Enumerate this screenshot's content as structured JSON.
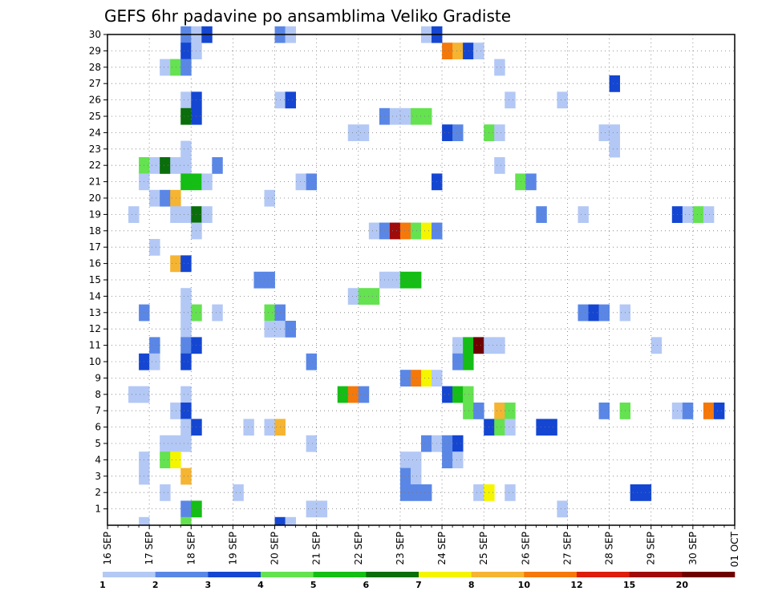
{
  "chart_data": {
    "type": "heatmap",
    "title": "GEFS 6hr padavine po ansamblima Veliko Gradiste",
    "xlabel": "",
    "ylabel": "",
    "x_unit": "6-hour step",
    "x_range": [
      0,
      60
    ],
    "ylim": [
      0,
      30
    ],
    "y_ticks": [
      1,
      2,
      3,
      4,
      5,
      6,
      7,
      8,
      9,
      10,
      11,
      12,
      13,
      14,
      15,
      16,
      17,
      18,
      19,
      20,
      21,
      22,
      23,
      24,
      25,
      26,
      27,
      28,
      29,
      30
    ],
    "x_tick_labels": [
      "16 SEP",
      "17 SEP",
      "18 SEP",
      "19 SEP",
      "20 SEP",
      "21 SEP",
      "22 SEP",
      "23 SEP",
      "24 SEP",
      "25 SEP",
      "26 SEP",
      "27 SEP",
      "28 SEP",
      "29 SEP",
      "30 SEP",
      "01 OCT"
    ],
    "grid": true,
    "legend": {
      "placement": "bottom",
      "labels": [
        "1",
        "2",
        "3",
        "4",
        "5",
        "6",
        "7",
        "8",
        "10",
        "12",
        "15",
        "20"
      ],
      "colors": [
        "#b3c8f5",
        "#5a87e6",
        "#1446d2",
        "#64e250",
        "#14be14",
        "#0a6e0a",
        "#f5f500",
        "#f5b432",
        "#f5780a",
        "#dc1e0a",
        "#a00a0a",
        "#6e0000"
      ]
    },
    "cells_format": "[member, step_index, color_class]",
    "cells": [
      [
        30,
        7,
        2
      ],
      [
        30,
        8,
        1
      ],
      [
        30,
        9,
        3
      ],
      [
        30,
        16,
        2
      ],
      [
        30,
        17,
        1
      ],
      [
        30,
        30,
        1
      ],
      [
        30,
        31,
        3
      ],
      [
        29,
        7,
        3
      ],
      [
        29,
        8,
        1
      ],
      [
        29,
        32,
        9
      ],
      [
        29,
        33,
        8
      ],
      [
        29,
        34,
        3
      ],
      [
        29,
        35,
        1
      ],
      [
        28,
        5,
        1
      ],
      [
        28,
        6,
        4
      ],
      [
        28,
        7,
        2
      ],
      [
        28,
        37,
        1
      ],
      [
        27,
        48,
        3
      ],
      [
        26,
        7,
        1
      ],
      [
        26,
        8,
        3
      ],
      [
        26,
        16,
        1
      ],
      [
        26,
        17,
        3
      ],
      [
        26,
        38,
        1
      ],
      [
        26,
        43,
        1
      ],
      [
        25,
        7,
        6
      ],
      [
        25,
        8,
        3
      ],
      [
        25,
        26,
        2
      ],
      [
        25,
        27,
        1
      ],
      [
        25,
        28,
        1
      ],
      [
        25,
        29,
        4
      ],
      [
        25,
        30,
        4
      ],
      [
        24,
        23,
        1
      ],
      [
        24,
        24,
        1
      ],
      [
        24,
        32,
        3
      ],
      [
        24,
        33,
        2
      ],
      [
        24,
        36,
        4
      ],
      [
        24,
        37,
        1
      ],
      [
        24,
        47,
        1
      ],
      [
        24,
        48,
        1
      ],
      [
        23,
        7,
        1
      ],
      [
        23,
        48,
        1
      ],
      [
        22,
        3,
        4
      ],
      [
        22,
        4,
        1
      ],
      [
        22,
        5,
        6
      ],
      [
        22,
        6,
        1
      ],
      [
        22,
        7,
        1
      ],
      [
        22,
        10,
        2
      ],
      [
        22,
        37,
        1
      ],
      [
        21,
        3,
        1
      ],
      [
        21,
        7,
        5
      ],
      [
        21,
        8,
        5
      ],
      [
        21,
        9,
        1
      ],
      [
        21,
        18,
        1
      ],
      [
        21,
        19,
        2
      ],
      [
        21,
        31,
        3
      ],
      [
        21,
        39,
        4
      ],
      [
        21,
        40,
        2
      ],
      [
        20,
        4,
        1
      ],
      [
        20,
        5,
        2
      ],
      [
        20,
        6,
        8
      ],
      [
        20,
        15,
        1
      ],
      [
        19,
        2,
        1
      ],
      [
        19,
        6,
        1
      ],
      [
        19,
        7,
        1
      ],
      [
        19,
        8,
        6
      ],
      [
        19,
        9,
        1
      ],
      [
        19,
        41,
        2
      ],
      [
        19,
        45,
        1
      ],
      [
        19,
        54,
        3
      ],
      [
        19,
        55,
        1
      ],
      [
        19,
        56,
        4
      ],
      [
        19,
        57,
        1
      ],
      [
        18,
        8,
        1
      ],
      [
        18,
        25,
        1
      ],
      [
        18,
        26,
        2
      ],
      [
        18,
        27,
        11
      ],
      [
        18,
        28,
        9
      ],
      [
        18,
        29,
        4
      ],
      [
        18,
        30,
        7
      ],
      [
        18,
        31,
        2
      ],
      [
        17,
        4,
        1
      ],
      [
        16,
        6,
        8
      ],
      [
        16,
        7,
        3
      ],
      [
        15,
        14,
        2
      ],
      [
        15,
        15,
        2
      ],
      [
        15,
        26,
        1
      ],
      [
        15,
        27,
        1
      ],
      [
        15,
        28,
        5
      ],
      [
        15,
        29,
        5
      ],
      [
        14,
        7,
        1
      ],
      [
        14,
        23,
        1
      ],
      [
        14,
        24,
        4
      ],
      [
        14,
        25,
        4
      ],
      [
        13,
        3,
        2
      ],
      [
        13,
        7,
        1
      ],
      [
        13,
        8,
        4
      ],
      [
        13,
        10,
        1
      ],
      [
        13,
        15,
        4
      ],
      [
        13,
        16,
        2
      ],
      [
        13,
        45,
        2
      ],
      [
        13,
        46,
        3
      ],
      [
        13,
        47,
        2
      ],
      [
        13,
        49,
        1
      ],
      [
        12,
        7,
        1
      ],
      [
        12,
        15,
        1
      ],
      [
        12,
        16,
        1
      ],
      [
        12,
        17,
        2
      ],
      [
        11,
        4,
        2
      ],
      [
        11,
        7,
        2
      ],
      [
        11,
        8,
        3
      ],
      [
        11,
        33,
        1
      ],
      [
        11,
        34,
        5
      ],
      [
        11,
        35,
        12
      ],
      [
        11,
        36,
        1
      ],
      [
        11,
        37,
        1
      ],
      [
        11,
        52,
        1
      ],
      [
        10,
        3,
        3
      ],
      [
        10,
        4,
        1
      ],
      [
        10,
        7,
        3
      ],
      [
        10,
        19,
        2
      ],
      [
        10,
        33,
        2
      ],
      [
        10,
        34,
        5
      ],
      [
        9,
        28,
        2
      ],
      [
        9,
        29,
        9
      ],
      [
        9,
        30,
        7
      ],
      [
        9,
        31,
        1
      ],
      [
        8,
        2,
        1
      ],
      [
        8,
        3,
        1
      ],
      [
        8,
        7,
        1
      ],
      [
        8,
        22,
        5
      ],
      [
        8,
        23,
        9
      ],
      [
        8,
        24,
        2
      ],
      [
        8,
        32,
        3
      ],
      [
        8,
        33,
        5
      ],
      [
        8,
        34,
        4
      ],
      [
        7,
        6,
        1
      ],
      [
        7,
        7,
        3
      ],
      [
        7,
        34,
        4
      ],
      [
        7,
        35,
        2
      ],
      [
        7,
        37,
        8
      ],
      [
        7,
        38,
        4
      ],
      [
        7,
        47,
        2
      ],
      [
        7,
        49,
        4
      ],
      [
        7,
        54,
        1
      ],
      [
        7,
        55,
        2
      ],
      [
        7,
        57,
        9
      ],
      [
        7,
        58,
        3
      ],
      [
        6,
        7,
        1
      ],
      [
        6,
        8,
        3
      ],
      [
        6,
        13,
        1
      ],
      [
        6,
        15,
        1
      ],
      [
        6,
        16,
        8
      ],
      [
        6,
        36,
        3
      ],
      [
        6,
        37,
        4
      ],
      [
        6,
        38,
        1
      ],
      [
        6,
        41,
        3
      ],
      [
        6,
        42,
        3
      ],
      [
        5,
        5,
        1
      ],
      [
        5,
        6,
        1
      ],
      [
        5,
        7,
        1
      ],
      [
        5,
        19,
        1
      ],
      [
        5,
        30,
        2
      ],
      [
        5,
        31,
        1
      ],
      [
        5,
        32,
        2
      ],
      [
        5,
        33,
        3
      ],
      [
        4,
        3,
        1
      ],
      [
        4,
        5,
        4
      ],
      [
        4,
        6,
        7
      ],
      [
        4,
        28,
        1
      ],
      [
        4,
        29,
        1
      ],
      [
        4,
        32,
        2
      ],
      [
        4,
        33,
        1
      ],
      [
        3,
        3,
        1
      ],
      [
        3,
        7,
        8
      ],
      [
        3,
        28,
        2
      ],
      [
        3,
        29,
        1
      ],
      [
        2,
        5,
        1
      ],
      [
        2,
        12,
        1
      ],
      [
        2,
        28,
        2
      ],
      [
        2,
        29,
        2
      ],
      [
        2,
        30,
        2
      ],
      [
        2,
        35,
        1
      ],
      [
        2,
        36,
        7
      ],
      [
        2,
        38,
        1
      ],
      [
        2,
        50,
        3
      ],
      [
        2,
        51,
        3
      ],
      [
        1,
        7,
        2
      ],
      [
        1,
        8,
        5
      ],
      [
        1,
        19,
        1
      ],
      [
        1,
        20,
        1
      ],
      [
        1,
        43,
        1
      ],
      [
        0,
        3,
        1
      ],
      [
        0,
        7,
        4
      ],
      [
        0,
        16,
        3
      ],
      [
        0,
        17,
        1
      ]
    ]
  }
}
